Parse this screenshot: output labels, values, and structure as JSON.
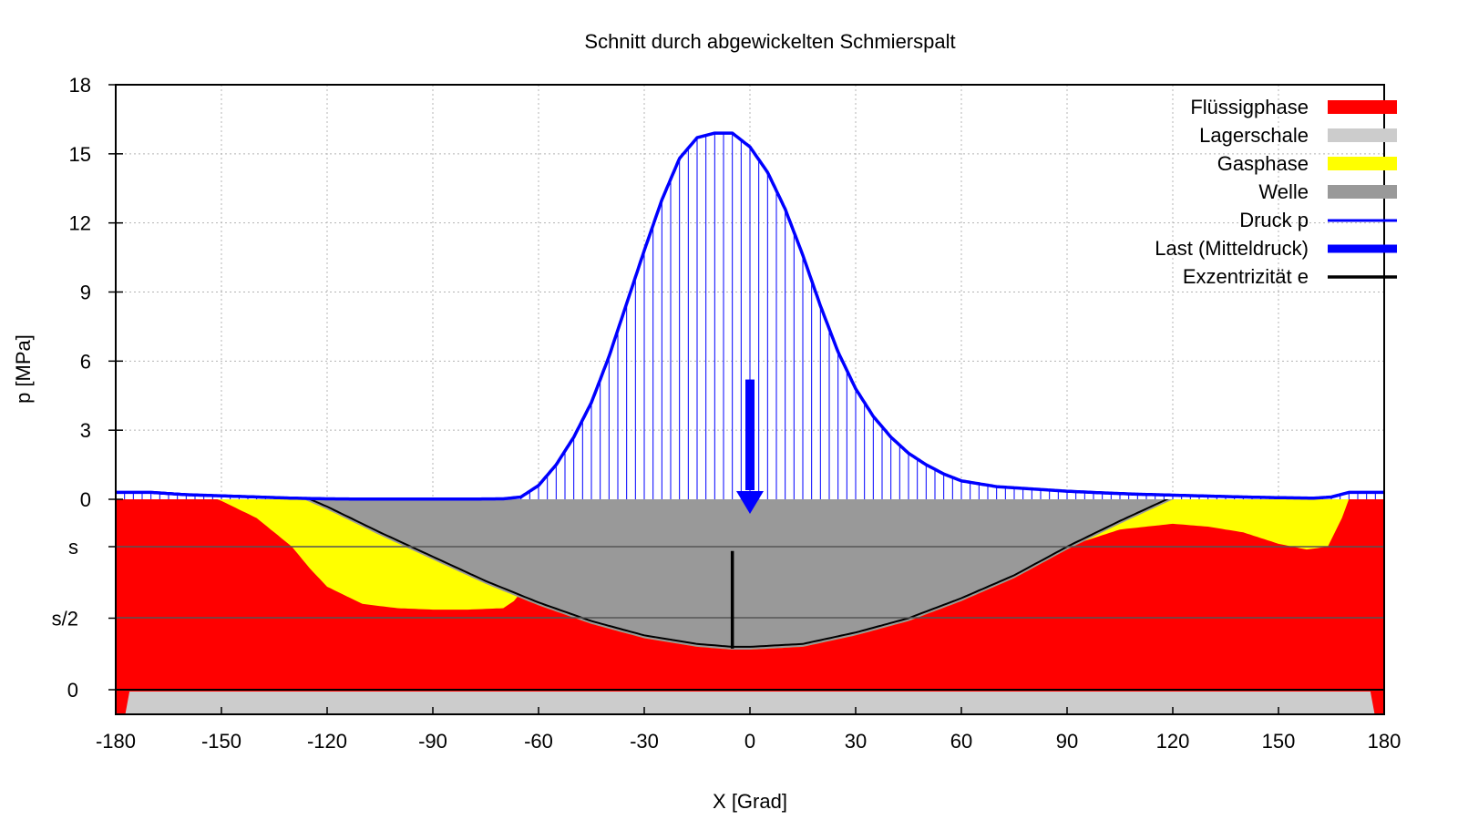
{
  "chart_data": {
    "type": "area",
    "title": "Schnitt durch abgewickelten Schmierspalt",
    "xlabel": "X [Grad]",
    "ylabel": "p [MPa]",
    "xlim": [
      -180,
      180
    ],
    "ylim": [
      0,
      18
    ],
    "x_ticks": [
      -180,
      -150,
      -120,
      -90,
      -60,
      -30,
      0,
      30,
      60,
      90,
      120,
      150,
      180
    ],
    "y_ticks": [
      0,
      3,
      6,
      9,
      12,
      15,
      18
    ],
    "gap_ticks": [
      "0",
      "s/2",
      "s"
    ],
    "grid": true,
    "legend_position": "top-right",
    "legend": [
      {
        "label": "Flüssigphase",
        "color": "#ff0000"
      },
      {
        "label": "Lagerschale",
        "color": "#cccccc"
      },
      {
        "label": "Gasphase",
        "color": "#ffff00"
      },
      {
        "label": "Welle",
        "color": "#999999"
      },
      {
        "label": "Druck p",
        "color": "#0000ff"
      },
      {
        "label": "Last (Mitteldruck)",
        "color": "#0000ff"
      },
      {
        "label": "Exzentrizität e",
        "color": "#000000"
      }
    ],
    "series": [
      {
        "name": "Druck p",
        "x": [
          -180,
          -175,
          -170,
          -160,
          -150,
          -140,
          -130,
          -120,
          -110,
          -100,
          -90,
          -80,
          -70,
          -65,
          -60,
          -55,
          -50,
          -45,
          -40,
          -35,
          -30,
          -25,
          -20,
          -15,
          -10,
          -5,
          0,
          5,
          10,
          15,
          20,
          25,
          30,
          35,
          40,
          45,
          50,
          55,
          60,
          70,
          80,
          90,
          100,
          110,
          120,
          130,
          140,
          150,
          160,
          165,
          170,
          175,
          180
        ],
        "values": [
          0.3,
          0.3,
          0.3,
          0.2,
          0.15,
          0.1,
          0.05,
          0.02,
          0.01,
          0.01,
          0.01,
          0.01,
          0.02,
          0.1,
          0.6,
          1.5,
          2.7,
          4.2,
          6.2,
          8.5,
          10.8,
          13.0,
          14.8,
          15.7,
          15.9,
          15.9,
          15.3,
          14.2,
          12.6,
          10.6,
          8.4,
          6.4,
          4.8,
          3.6,
          2.7,
          2.0,
          1.5,
          1.1,
          0.8,
          0.55,
          0.45,
          0.35,
          0.28,
          0.22,
          0.18,
          0.14,
          0.1,
          0.07,
          0.05,
          0.1,
          0.3,
          0.3,
          0.3
        ]
      },
      {
        "name": "Welle",
        "x": [
          -180,
          -165,
          -150,
          -135,
          -120,
          -105,
          -90,
          -75,
          -60,
          -45,
          -30,
          -15,
          -5,
          0,
          15,
          30,
          45,
          60,
          75,
          90,
          105,
          120,
          135,
          150,
          165,
          180
        ],
        "values": [
          1.72,
          1.68,
          1.58,
          1.44,
          1.28,
          1.1,
          0.93,
          0.76,
          0.61,
          0.48,
          0.38,
          0.32,
          0.3,
          0.3,
          0.32,
          0.4,
          0.5,
          0.64,
          0.8,
          1.0,
          1.18,
          1.35,
          1.51,
          1.62,
          1.7,
          1.72
        ]
      },
      {
        "name": "Flüssigphase",
        "x": [
          -180,
          -170,
          -160,
          -150,
          -140,
          -130,
          -125,
          -120,
          -110,
          -100,
          -90,
          -80,
          -70,
          -67,
          -65,
          -62,
          -58,
          -55,
          -50,
          -45,
          -40,
          -35,
          -30,
          -25,
          -20,
          -15,
          -5,
          0,
          10,
          20,
          30,
          45,
          60,
          75,
          90,
          105,
          120,
          130,
          140,
          150,
          158,
          164,
          168,
          171,
          175,
          180
        ],
        "values": [
          1.55,
          1.5,
          1.42,
          1.32,
          1.2,
          1.0,
          0.85,
          0.72,
          0.6,
          0.57,
          0.56,
          0.56,
          0.57,
          0.62,
          0.72,
          0.8,
          0.79,
          0.74,
          0.67,
          0.6,
          0.54,
          0.48,
          0.43,
          0.39,
          0.35,
          0.32,
          0.28,
          0.29,
          0.31,
          0.35,
          0.4,
          0.5,
          0.65,
          0.81,
          1.0,
          1.12,
          1.16,
          1.14,
          1.1,
          1.02,
          0.98,
          1.0,
          1.2,
          1.4,
          1.55,
          1.55
        ]
      },
      {
        "name": "Lagerschale",
        "x": [
          -180,
          180
        ],
        "values": [
          -0.5,
          -0.5
        ]
      },
      {
        "name": "Last (Mitteldruck)",
        "x": [
          0
        ],
        "values": [
          5.2
        ]
      },
      {
        "name": "Exzentrizität e",
        "x": [
          -5
        ],
        "values": [
          0.97
        ]
      }
    ]
  }
}
